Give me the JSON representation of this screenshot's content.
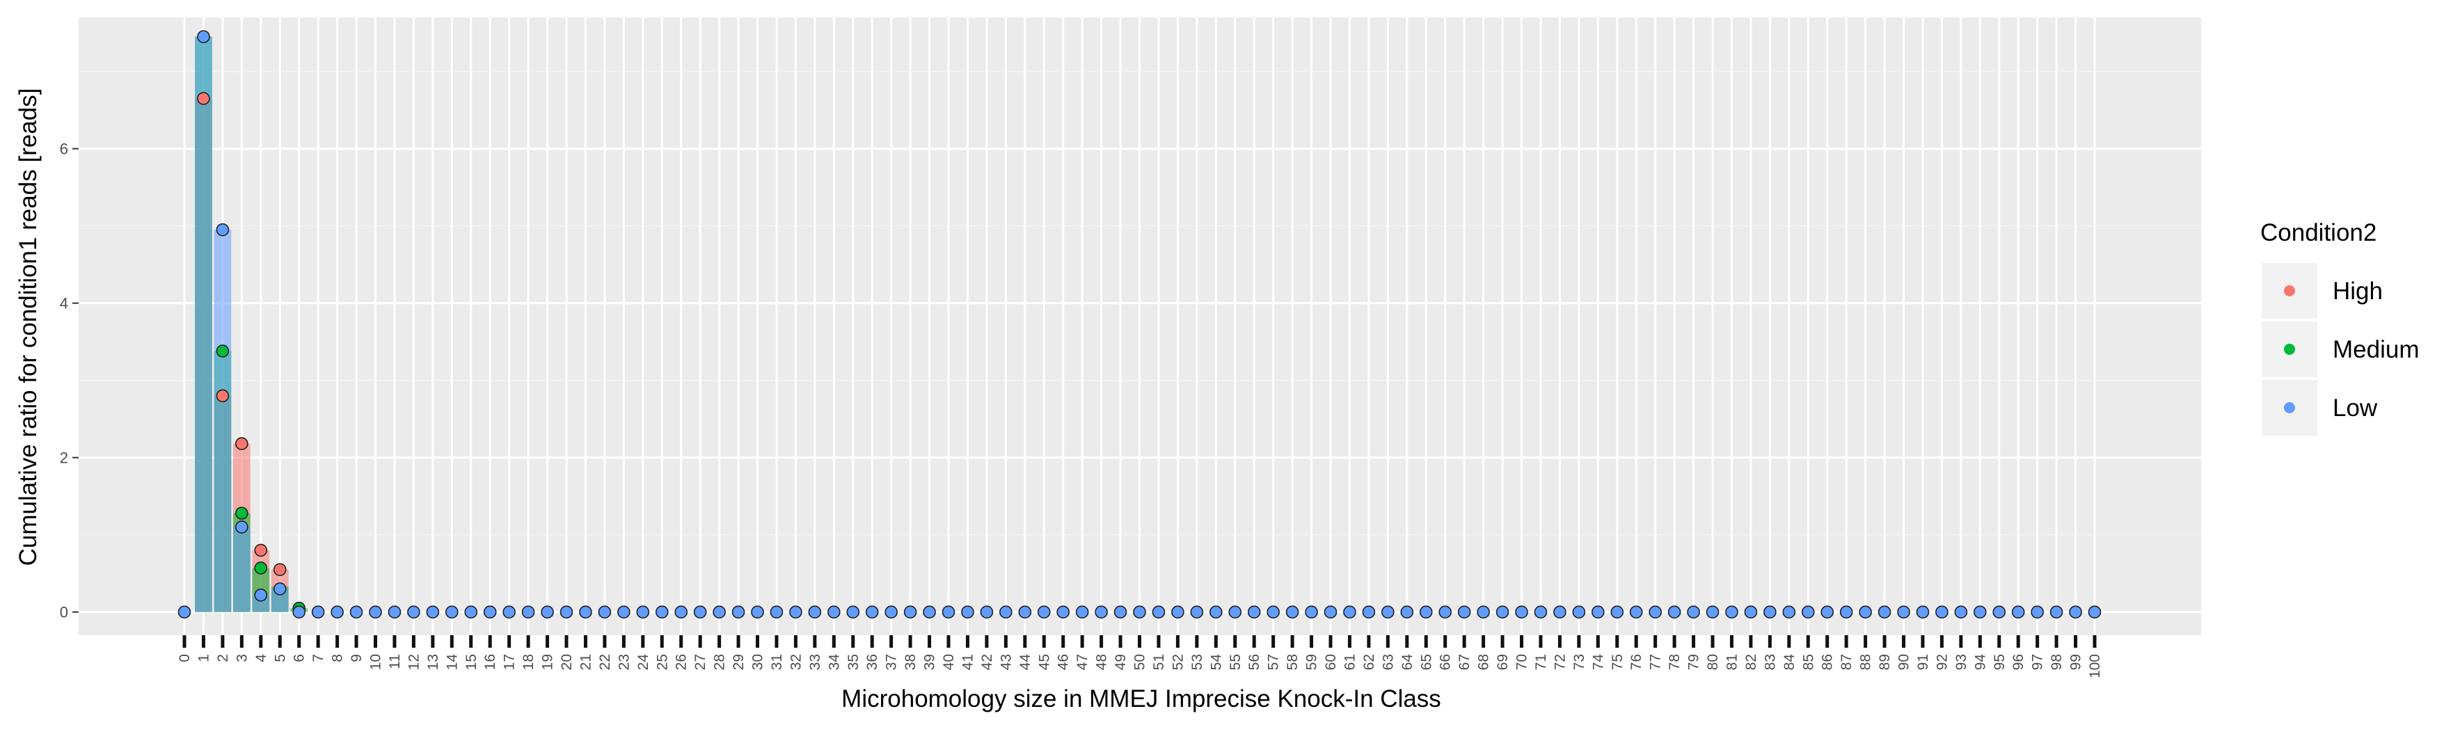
{
  "chart_data": {
    "type": "bar",
    "xlabel": "Microhomology size in MMEJ Imprecise Knock-In Class",
    "ylabel": "Cumulative ratio for condition1 reads [reads]",
    "x_ticks": [
      0,
      1,
      2,
      3,
      4,
      5,
      6,
      7,
      8,
      9,
      10,
      11,
      12,
      13,
      14,
      15,
      16,
      17,
      18,
      19,
      20,
      21,
      22,
      23,
      24,
      25,
      26,
      27,
      28,
      29,
      30,
      31,
      32,
      33,
      34,
      35,
      36,
      37,
      38,
      39,
      40,
      41,
      42,
      43,
      44,
      45,
      46,
      47,
      48,
      49,
      50,
      51,
      52,
      53,
      54,
      55,
      56,
      57,
      58,
      59,
      60,
      61,
      62,
      63,
      64,
      65,
      66,
      67,
      68,
      69,
      70,
      71,
      72,
      73,
      74,
      75,
      76,
      77,
      78,
      79,
      80,
      81,
      82,
      83,
      84,
      85,
      86,
      87,
      88,
      89,
      90,
      91,
      92,
      93,
      94,
      95,
      96,
      97,
      98,
      99,
      100
    ],
    "y_ticks": [
      0,
      2,
      4,
      6
    ],
    "ylim": [
      -0.3,
      7.7
    ],
    "grid": true,
    "legend": {
      "title": "Condition2",
      "position": "right",
      "entries": [
        {
          "label": "High",
          "color": "#F8766D"
        },
        {
          "label": "Medium",
          "color": "#00BA38"
        },
        {
          "label": "Low",
          "color": "#619CFF"
        }
      ]
    },
    "series": [
      {
        "name": "High",
        "color": "#F8766D",
        "bars": {
          "x": [
            1,
            2,
            3,
            4,
            5
          ],
          "y": [
            6.65,
            2.8,
            2.18,
            0.8,
            0.55
          ]
        },
        "points": {
          "x": [
            1,
            2,
            3,
            4,
            5
          ],
          "y": [
            6.65,
            2.8,
            2.18,
            0.8,
            0.55
          ]
        }
      },
      {
        "name": "Medium",
        "color": "#00BA38",
        "bars": {
          "x": [
            1,
            2,
            3,
            4,
            5,
            6
          ],
          "y": [
            7.45,
            3.38,
            1.28,
            0.57,
            0.33,
            0.05
          ]
        },
        "points": {
          "x": [
            2,
            3,
            4,
            6
          ],
          "y": [
            3.38,
            1.28,
            0.57,
            0.05
          ]
        }
      },
      {
        "name": "Low",
        "color": "#619CFF",
        "bars": {
          "x": [
            1,
            2,
            3,
            4,
            5
          ],
          "y": [
            7.45,
            4.95,
            1.1,
            0.22,
            0.3
          ]
        },
        "points": {
          "x": [
            0,
            1,
            2,
            3,
            4,
            5
          ],
          "y": [
            0,
            7.45,
            4.95,
            1.1,
            0.22,
            0.3
          ],
          "zero_from": 6,
          "zero_to": 100
        }
      }
    ]
  }
}
